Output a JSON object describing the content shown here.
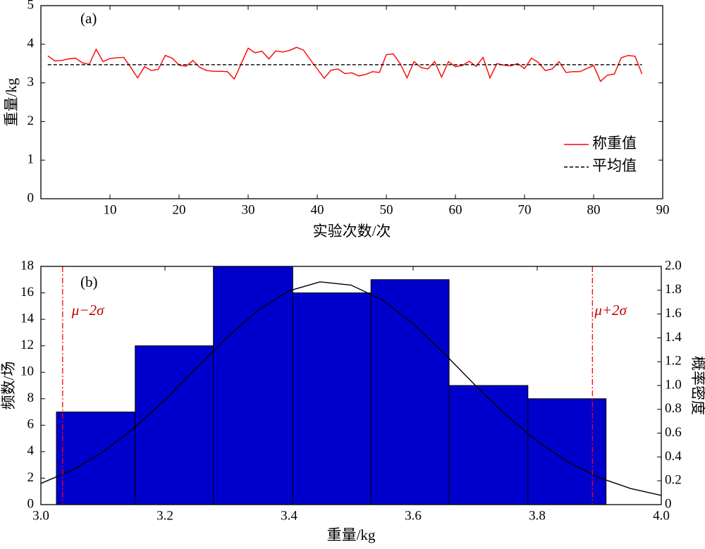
{
  "chart_data": [
    {
      "type": "line",
      "annotation": "(a)",
      "xlabel": "实验次数/次",
      "ylabel": "重量/kg",
      "xlim": [
        0,
        90
      ],
      "ylim": [
        0,
        5
      ],
      "xticks": [
        10,
        20,
        30,
        40,
        50,
        60,
        70,
        80,
        90
      ],
      "yticks": [
        0,
        1,
        2,
        3,
        4,
        5
      ],
      "legend": "lower right",
      "series": [
        {
          "name": "称重值",
          "color": "#ff0000",
          "dash": "solid",
          "x": [
            1,
            2,
            3,
            4,
            5,
            6,
            7,
            8,
            9,
            10,
            11,
            12,
            13,
            14,
            15,
            16,
            17,
            18,
            19,
            20,
            21,
            22,
            23,
            24,
            25,
            26,
            27,
            28,
            29,
            30,
            31,
            32,
            33,
            34,
            35,
            36,
            37,
            38,
            39,
            40,
            41,
            42,
            43,
            44,
            45,
            46,
            47,
            48,
            49,
            50,
            51,
            52,
            53,
            54,
            55,
            56,
            57,
            58,
            59,
            60,
            61,
            62,
            63,
            64,
            65,
            66,
            67,
            68,
            69,
            70,
            71,
            72,
            73,
            74,
            75,
            76,
            77,
            78,
            79,
            80,
            81,
            82,
            83,
            84,
            85,
            86,
            87
          ],
          "values": [
            3.7,
            3.57,
            3.58,
            3.62,
            3.64,
            3.52,
            3.48,
            3.87,
            3.55,
            3.63,
            3.65,
            3.66,
            3.4,
            3.13,
            3.42,
            3.32,
            3.35,
            3.71,
            3.64,
            3.46,
            3.43,
            3.58,
            3.4,
            3.32,
            3.3,
            3.3,
            3.29,
            3.1,
            3.5,
            3.9,
            3.78,
            3.82,
            3.62,
            3.83,
            3.8,
            3.84,
            3.92,
            3.85,
            3.6,
            3.36,
            3.12,
            3.33,
            3.36,
            3.24,
            3.26,
            3.18,
            3.22,
            3.29,
            3.27,
            3.73,
            3.75,
            3.5,
            3.13,
            3.55,
            3.4,
            3.36,
            3.55,
            3.15,
            3.55,
            3.42,
            3.45,
            3.56,
            3.43,
            3.66,
            3.13,
            3.5,
            3.46,
            3.44,
            3.5,
            3.37,
            3.64,
            3.53,
            3.32,
            3.36,
            3.55,
            3.27,
            3.29,
            3.29,
            3.37,
            3.45,
            3.04,
            3.2,
            3.23,
            3.65,
            3.71,
            3.69,
            3.23
          ]
        },
        {
          "name": "平均值",
          "color": "#000000",
          "dash": "dashed",
          "x": [
            1,
            87
          ],
          "values": [
            3.47,
            3.47
          ]
        }
      ]
    },
    {
      "type": "histogram",
      "annotation": "(b)",
      "xlabel": "重量/kg",
      "ylabel": "频数/场",
      "y2label": "概率密度",
      "xlim": [
        3,
        4
      ],
      "ylim": [
        0,
        18
      ],
      "y2lim": [
        0,
        2
      ],
      "xticks": [
        {
          "value": 3,
          "label": "3.0"
        },
        3.2,
        3.4,
        3.6,
        3.8,
        {
          "value": 4,
          "label": "4.0"
        }
      ],
      "yticks": [
        0,
        2,
        4,
        6,
        8,
        10,
        12,
        14,
        16,
        18
      ],
      "y2ticks": [
        0,
        0.2,
        0.4,
        0.6,
        0.8,
        {
          "value": 1,
          "label": "1.0"
        },
        1.2,
        1.4,
        1.6,
        1.8,
        {
          "value": 2,
          "label": "2.0"
        }
      ],
      "bins": [
        3.025,
        3.152,
        3.278,
        3.406,
        3.532,
        3.658,
        3.785,
        3.911
      ],
      "counts": [
        7,
        12,
        18,
        16,
        17,
        9,
        8
      ],
      "color": "#0000cc",
      "curve": {
        "axis": "y2",
        "color": "#000000",
        "x": [
          3,
          3.05,
          3.1,
          3.15,
          3.2,
          3.25,
          3.3,
          3.35,
          3.4,
          3.45,
          3.5,
          3.55,
          3.6,
          3.65,
          3.7,
          3.75,
          3.8,
          3.85,
          3.9,
          3.95,
          4
        ],
        "values": [
          0.178,
          0.288,
          0.442,
          0.641,
          0.879,
          1.142,
          1.403,
          1.632,
          1.795,
          1.87,
          1.843,
          1.72,
          1.518,
          1.269,
          1.003,
          0.751,
          0.532,
          0.356,
          0.226,
          0.136,
          0.077
        ]
      },
      "vlines": [
        {
          "x": 3.035,
          "label": "μ−2σ",
          "color": "#ff0000"
        },
        {
          "x": 3.889,
          "label": "μ+2σ",
          "color": "#ff0000"
        }
      ]
    }
  ]
}
